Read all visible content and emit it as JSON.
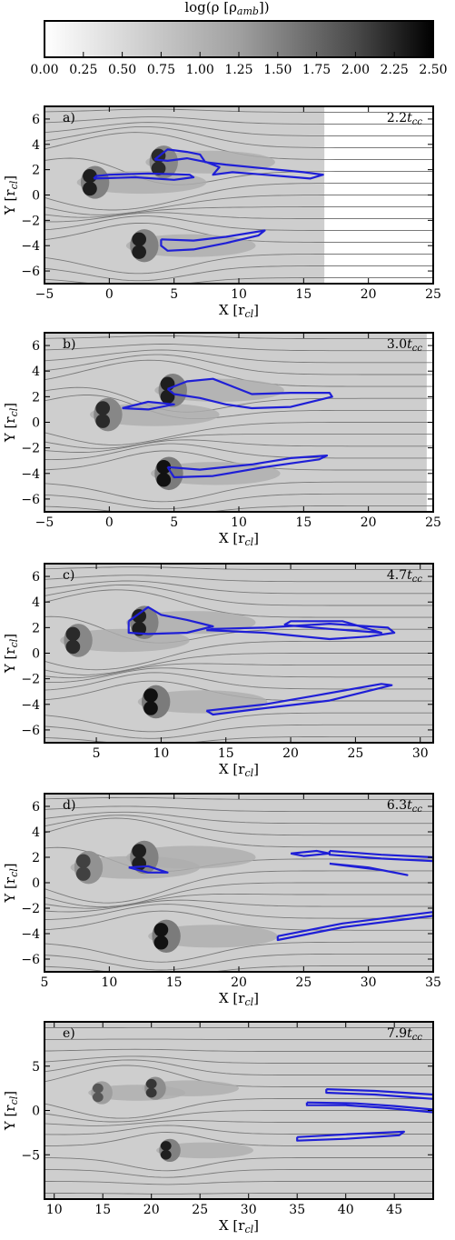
{
  "colorbar": {
    "title": "log(ρ [ρ",
    "title_sub": "amb",
    "title_end": "])",
    "ticks": [
      "0.00",
      "0.25",
      "0.50",
      "0.75",
      "1.00",
      "1.25",
      "1.50",
      "1.75",
      "2.00",
      "2.25",
      "2.50"
    ],
    "range": [
      0,
      2.5
    ]
  },
  "colors": {
    "contour": "#1f1fd6",
    "streamline": "#7a7a7a",
    "frame": "#000000"
  },
  "chart_data": [
    {
      "type": "heatmap",
      "panel": "a)",
      "time": "2.2",
      "time_unit": "cc",
      "xlabel": "X [r",
      "xlabel_sub": "cl",
      "ylabel": "Y [r",
      "ylabel_sub": "cl",
      "xlim": [
        -5,
        25
      ],
      "ylim": [
        -7,
        7
      ],
      "xticks": [
        -5,
        0,
        5,
        10,
        15,
        20,
        25
      ],
      "yticks": [
        -6,
        -4,
        -2,
        0,
        2,
        4,
        6
      ],
      "clouds": [
        {
          "x": -1.5,
          "y": 1.0,
          "peak": 2.3
        },
        {
          "x": 3.8,
          "y": 2.6,
          "peak": 2.2
        },
        {
          "x": 2.3,
          "y": -4.0,
          "peak": 2.3
        }
      ],
      "contours": [
        [
          [
            -1.2,
            1.3
          ],
          [
            2,
            1.4
          ],
          [
            5,
            1.2
          ],
          [
            6.5,
            1.4
          ],
          [
            6.2,
            1.6
          ],
          [
            3,
            1.7
          ],
          [
            0,
            1.6
          ],
          [
            -1.0,
            1.5
          ],
          [
            -1.2,
            1.3
          ]
        ],
        [
          [
            3.5,
            2.8
          ],
          [
            4.5,
            3.6
          ],
          [
            6,
            3.4
          ],
          [
            7,
            3.2
          ],
          [
            7.4,
            2.6
          ],
          [
            9,
            2.4
          ],
          [
            12,
            2.1
          ],
          [
            15,
            1.8
          ],
          [
            16.5,
            1.6
          ],
          [
            15.5,
            1.3
          ],
          [
            12,
            1.6
          ],
          [
            9.5,
            1.8
          ],
          [
            8,
            1.6
          ],
          [
            8.5,
            2.2
          ],
          [
            7.5,
            2.6
          ],
          [
            6,
            2.9
          ],
          [
            4.5,
            2.7
          ],
          [
            3.5,
            2.8
          ]
        ],
        [
          [
            4.0,
            -3.5
          ],
          [
            6.5,
            -3.6
          ],
          [
            9,
            -3.3
          ],
          [
            12,
            -2.8
          ],
          [
            11.5,
            -3.2
          ],
          [
            9,
            -3.8
          ],
          [
            6.5,
            -4.3
          ],
          [
            4.5,
            -4.4
          ],
          [
            4.0,
            -4.0
          ],
          [
            4.0,
            -3.5
          ]
        ]
      ]
    },
    {
      "type": "heatmap",
      "panel": "b)",
      "time": "3.0",
      "time_unit": "cc",
      "xlabel": "X [r",
      "xlabel_sub": "cl",
      "ylabel": "Y [r",
      "ylabel_sub": "cl",
      "xlim": [
        -5,
        25
      ],
      "ylim": [
        -7,
        7
      ],
      "xticks": [
        -5,
        0,
        5,
        10,
        15,
        20,
        25
      ],
      "yticks": [
        -6,
        -4,
        -2,
        0,
        2,
        4,
        6
      ],
      "clouds": [
        {
          "x": -0.5,
          "y": 0.6,
          "peak": 2.2
        },
        {
          "x": 4.5,
          "y": 2.5,
          "peak": 2.3
        },
        {
          "x": 4.2,
          "y": -4.0,
          "peak": 2.4
        }
      ],
      "contours": [
        [
          [
            1.0,
            1.1
          ],
          [
            3,
            1.6
          ],
          [
            5,
            1.4
          ],
          [
            3,
            1.0
          ],
          [
            1.0,
            1.1
          ]
        ],
        [
          [
            4.5,
            2.6
          ],
          [
            6,
            3.2
          ],
          [
            8,
            3.4
          ],
          [
            9.5,
            2.8
          ],
          [
            11,
            2.2
          ],
          [
            14,
            2.3
          ],
          [
            17,
            2.3
          ],
          [
            17.2,
            2.0
          ],
          [
            14,
            1.2
          ],
          [
            11,
            1.1
          ],
          [
            9,
            1.4
          ],
          [
            7,
            1.9
          ],
          [
            5,
            2.2
          ],
          [
            4.5,
            2.6
          ]
        ],
        [
          [
            4.5,
            -3.5
          ],
          [
            7,
            -3.7
          ],
          [
            11,
            -3.3
          ],
          [
            14,
            -2.8
          ],
          [
            16.8,
            -2.6
          ],
          [
            16.2,
            -2.9
          ],
          [
            12,
            -3.5
          ],
          [
            8,
            -4.2
          ],
          [
            5,
            -4.3
          ],
          [
            4.5,
            -3.5
          ]
        ]
      ]
    },
    {
      "type": "heatmap",
      "panel": "c)",
      "time": "4.7",
      "time_unit": "cc",
      "xlabel": "X [r",
      "xlabel_sub": "cl",
      "ylabel": "Y [r",
      "ylabel_sub": "cl",
      "xlim": [
        1,
        31
      ],
      "ylim": [
        -7,
        7
      ],
      "xticks": [
        5,
        10,
        15,
        20,
        25,
        30
      ],
      "yticks": [
        -6,
        -4,
        -2,
        0,
        2,
        4,
        6
      ],
      "clouds": [
        {
          "x": 3.2,
          "y": 1.0,
          "peak": 2.2
        },
        {
          "x": 8.3,
          "y": 2.4,
          "peak": 2.3
        },
        {
          "x": 9.2,
          "y": -3.8,
          "peak": 2.4
        }
      ],
      "contours": [
        [
          [
            7.5,
            2.5
          ],
          [
            9,
            3.6
          ],
          [
            10,
            3.0
          ],
          [
            12,
            2.6
          ],
          [
            14,
            2.1
          ],
          [
            12,
            1.6
          ],
          [
            9,
            1.5
          ],
          [
            7.5,
            1.6
          ],
          [
            7.5,
            2.5
          ]
        ],
        [
          [
            13.5,
            1.8
          ],
          [
            18,
            1.6
          ],
          [
            23,
            1.1
          ],
          [
            26,
            1.3
          ],
          [
            28,
            1.6
          ],
          [
            27.5,
            2.0
          ],
          [
            23,
            2.3
          ],
          [
            18,
            2.0
          ],
          [
            14,
            1.9
          ],
          [
            13.5,
            1.8
          ]
        ],
        [
          [
            19.5,
            2.2
          ],
          [
            23,
            1.9
          ],
          [
            27,
            1.6
          ],
          [
            24,
            2.5
          ],
          [
            20,
            2.5
          ],
          [
            19.5,
            2.2
          ]
        ],
        [
          [
            13.5,
            -4.5
          ],
          [
            18,
            -4.0
          ],
          [
            22,
            -3.3
          ],
          [
            27,
            -2.4
          ],
          [
            27.8,
            -2.5
          ],
          [
            23,
            -3.7
          ],
          [
            18,
            -4.3
          ],
          [
            14,
            -4.8
          ],
          [
            13.5,
            -4.5
          ]
        ]
      ]
    },
    {
      "type": "heatmap",
      "panel": "d)",
      "time": "6.3",
      "time_unit": "cc",
      "xlabel": "X [r",
      "xlabel_sub": "cl",
      "ylabel": "Y [r",
      "ylabel_sub": "cl",
      "xlim": [
        5,
        35
      ],
      "ylim": [
        -7,
        7
      ],
      "xticks": [
        5,
        10,
        15,
        20,
        25,
        30,
        35
      ],
      "yticks": [
        -6,
        -4,
        -2,
        0,
        2,
        4,
        6
      ],
      "clouds": [
        {
          "x": 8.0,
          "y": 1.2,
          "peak": 2.0
        },
        {
          "x": 12.3,
          "y": 2.0,
          "peak": 2.3
        },
        {
          "x": 14.0,
          "y": -4.2,
          "peak": 2.4
        }
      ],
      "contours": [
        [
          [
            11.5,
            1.2
          ],
          [
            13,
            0.8
          ],
          [
            14.5,
            0.8
          ],
          [
            13,
            1.3
          ],
          [
            11.5,
            1.2
          ]
        ],
        [
          [
            24,
            2.3
          ],
          [
            26,
            2.5
          ],
          [
            27,
            2.3
          ],
          [
            25,
            2.1
          ],
          [
            24,
            2.3
          ]
        ],
        [
          [
            27,
            2.5
          ],
          [
            31,
            2.2
          ],
          [
            35,
            2.0
          ],
          [
            35,
            1.7
          ],
          [
            31,
            1.9
          ],
          [
            27,
            2.2
          ],
          [
            27,
            2.5
          ]
        ],
        [
          [
            27,
            1.5
          ],
          [
            31,
            1.0
          ],
          [
            33,
            0.6
          ],
          [
            30,
            1.2
          ],
          [
            27,
            1.5
          ]
        ],
        [
          [
            23,
            -4.2
          ],
          [
            28,
            -3.2
          ],
          [
            35,
            -2.3
          ],
          [
            35,
            -2.6
          ],
          [
            28,
            -3.5
          ],
          [
            23,
            -4.5
          ],
          [
            23,
            -4.2
          ]
        ]
      ]
    },
    {
      "type": "heatmap",
      "panel": "e)",
      "time": "7.9",
      "time_unit": "cc",
      "xlabel": "X [r",
      "xlabel_sub": "cl",
      "ylabel": "Y [r",
      "ylabel_sub": "cl",
      "xlim": [
        9,
        49
      ],
      "ylim": [
        -10,
        10
      ],
      "xticks": [
        10,
        15,
        20,
        25,
        30,
        35,
        40,
        45
      ],
      "yticks": [
        -5,
        0,
        5
      ],
      "clouds": [
        {
          "x": 14.5,
          "y": 2.0,
          "peak": 1.8
        },
        {
          "x": 20.0,
          "y": 2.5,
          "peak": 2.1
        },
        {
          "x": 21.5,
          "y": -4.5,
          "peak": 2.3
        }
      ],
      "contours": [
        [
          [
            38,
            2.4
          ],
          [
            43,
            2.2
          ],
          [
            49,
            1.8
          ],
          [
            49,
            1.3
          ],
          [
            43,
            1.8
          ],
          [
            38,
            2.0
          ],
          [
            38,
            2.4
          ]
        ],
        [
          [
            36,
            0.9
          ],
          [
            41,
            0.8
          ],
          [
            45,
            0.5
          ],
          [
            49,
            0.1
          ],
          [
            49,
            -0.2
          ],
          [
            44,
            0.3
          ],
          [
            40,
            0.6
          ],
          [
            36,
            0.6
          ],
          [
            36,
            0.9
          ]
        ],
        [
          [
            35,
            -3.0
          ],
          [
            40,
            -2.7
          ],
          [
            46,
            -2.4
          ],
          [
            45.5,
            -2.8
          ],
          [
            40,
            -3.2
          ],
          [
            35,
            -3.4
          ],
          [
            35,
            -3.0
          ]
        ]
      ]
    }
  ]
}
